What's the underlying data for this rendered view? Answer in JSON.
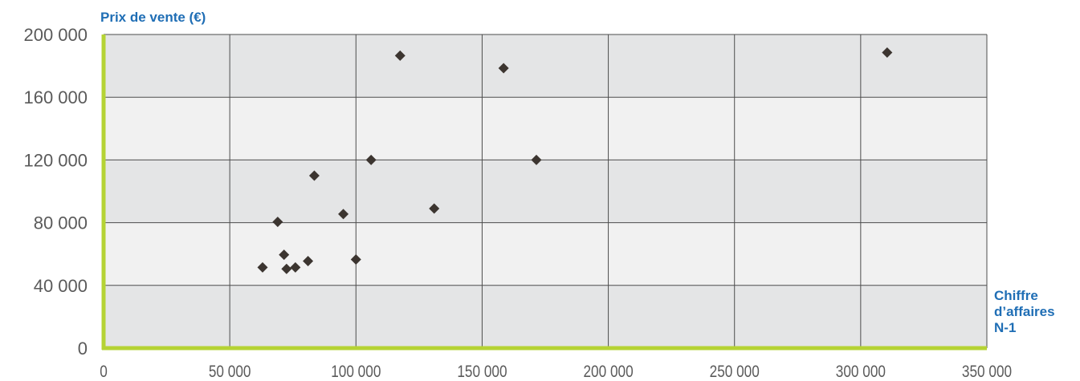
{
  "chart_data": {
    "type": "scatter",
    "ylabel": "Prix de vente (€)",
    "xlabel": "Chiffre\nd’affaires\nN-1",
    "xlim": [
      0,
      350000
    ],
    "ylim": [
      0,
      200000
    ],
    "x_ticks": [
      0,
      50000,
      100000,
      150000,
      200000,
      250000,
      300000,
      350000
    ],
    "x_tick_labels": [
      "0",
      "50 000",
      "100 000",
      "150 000",
      "200 000",
      "250 000",
      "300 000",
      "350 000"
    ],
    "y_ticks": [
      0,
      40000,
      80000,
      120000,
      160000,
      200000
    ],
    "y_tick_labels": [
      "0",
      "40 000",
      "80 000",
      "120 000",
      "160 000",
      "200 000"
    ],
    "grid": true,
    "colors": {
      "axis": "#b5d334",
      "band_dark": "#e4e5e6",
      "band_light": "#f1f1f1",
      "grid": "#4d4d4d",
      "marker": "#3c3530",
      "label": "#1f6eb5"
    },
    "points": [
      {
        "x": 63000,
        "y": 51500
      },
      {
        "x": 69000,
        "y": 80500
      },
      {
        "x": 71500,
        "y": 59500
      },
      {
        "x": 72500,
        "y": 50500
      },
      {
        "x": 76000,
        "y": 51500
      },
      {
        "x": 81000,
        "y": 55500
      },
      {
        "x": 83500,
        "y": 110000
      },
      {
        "x": 95000,
        "y": 85500
      },
      {
        "x": 100000,
        "y": 56500
      },
      {
        "x": 106000,
        "y": 120000
      },
      {
        "x": 117500,
        "y": 186500
      },
      {
        "x": 131000,
        "y": 89000
      },
      {
        "x": 158500,
        "y": 178500
      },
      {
        "x": 171500,
        "y": 120000
      },
      {
        "x": 310500,
        "y": 188500
      }
    ]
  }
}
